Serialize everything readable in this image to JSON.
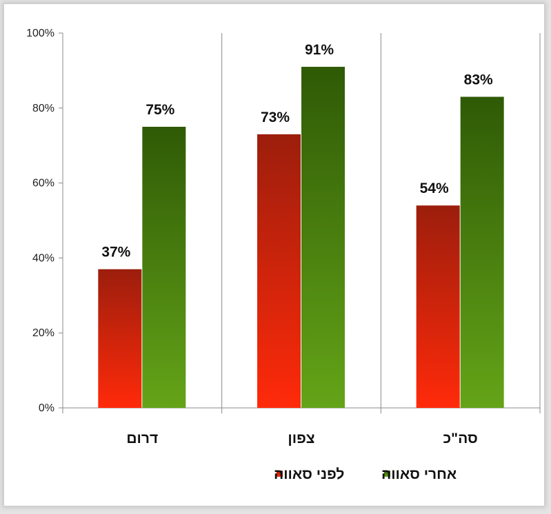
{
  "chart_data": {
    "type": "bar",
    "categories": [
      "דרום",
      "צפון",
      "סה\"כ"
    ],
    "series": [
      {
        "name": "לפני סאווה",
        "values": [
          37,
          73,
          54
        ],
        "labels": [
          "37%",
          "73%",
          "54%"
        ],
        "color_top": "#9c1e0c",
        "color_bottom": "#ff2a0a"
      },
      {
        "name": "אחרי סאווה",
        "values": [
          75,
          91,
          83
        ],
        "labels": [
          "75%",
          "91%",
          "83%"
        ],
        "color_top": "#2f5a06",
        "color_bottom": "#64a418"
      }
    ],
    "y_ticks": [
      "0%",
      "20%",
      "40%",
      "60%",
      "80%",
      "100%"
    ],
    "ylim": [
      0,
      100
    ],
    "legend_position": "bottom",
    "grid": false
  }
}
